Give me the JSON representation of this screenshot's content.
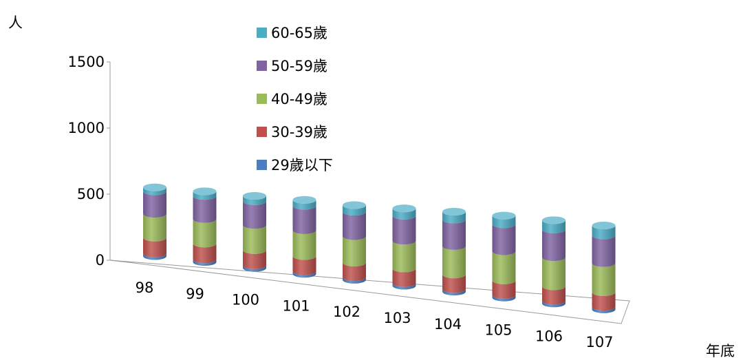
{
  "chart_data": {
    "type": "bar",
    "stacked": true,
    "style": "3d-cylinder",
    "y_unit_label": "人",
    "x_unit_label": "年底",
    "categories": [
      "98",
      "99",
      "100",
      "101",
      "102",
      "103",
      "104",
      "105",
      "106",
      "107"
    ],
    "y_ticks": [
      "0",
      "500",
      "1000",
      "1500"
    ],
    "ylim": [
      0,
      1500
    ],
    "grid": false,
    "legend_position": "top-center",
    "series": [
      {
        "name": "29歲以下",
        "color": "#4a7fc1",
        "values": [
          20,
          20,
          20,
          20,
          20,
          20,
          20,
          20,
          20,
          20
        ]
      },
      {
        "name": "30-39歲",
        "color": "#c0504d",
        "values": [
          120,
          120,
          115,
          115,
          110,
          110,
          110,
          110,
          110,
          110
        ]
      },
      {
        "name": "40-49歲",
        "color": "#9bbb59",
        "values": [
          180,
          185,
          190,
          195,
          200,
          210,
          215,
          220,
          220,
          220
        ]
      },
      {
        "name": "50-59歲",
        "color": "#8064a2",
        "values": [
          170,
          175,
          180,
          185,
          185,
          190,
          200,
          205,
          210,
          210
        ]
      },
      {
        "name": "60-65歲",
        "color": "#4bacc6",
        "values": [
          30,
          35,
          40,
          45,
          50,
          55,
          60,
          65,
          70,
          75
        ]
      }
    ]
  }
}
